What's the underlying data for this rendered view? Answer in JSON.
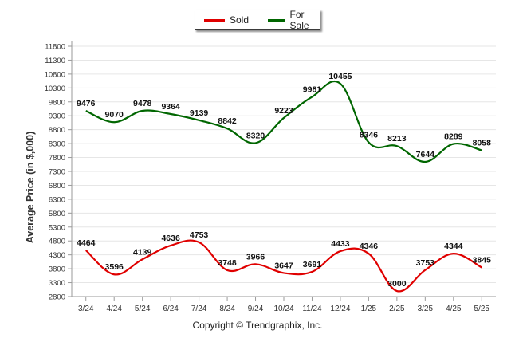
{
  "chart_data": {
    "type": "line",
    "ylabel": "Average Price (in $,000)",
    "xlabel": "",
    "categories": [
      "3/24",
      "4/24",
      "5/24",
      "6/24",
      "7/24",
      "8/24",
      "9/24",
      "10/24",
      "11/24",
      "12/24",
      "1/25",
      "2/25",
      "3/25",
      "4/25",
      "5/25"
    ],
    "y_ticks": [
      2800,
      3300,
      3800,
      4300,
      4800,
      5300,
      5800,
      6300,
      6800,
      7300,
      7800,
      8300,
      8800,
      9300,
      9800,
      10300,
      10800,
      11300,
      11800
    ],
    "ylim": [
      2800,
      11800
    ],
    "grid": true,
    "legend": "top-center",
    "series": [
      {
        "name": "Sold",
        "color": "#e00000",
        "values": [
          4464,
          3596,
          4139,
          4636,
          4753,
          3748,
          3966,
          3647,
          3691,
          4433,
          4346,
          3000,
          3753,
          4344,
          3845
        ]
      },
      {
        "name": "For Sale",
        "color": "#006600",
        "values": [
          9476,
          9070,
          9478,
          9364,
          9139,
          8842,
          8320,
          9223,
          9981,
          10455,
          8346,
          8213,
          7644,
          8289,
          8058
        ]
      }
    ]
  },
  "legend": {
    "sold_label": "Sold",
    "forsale_label": "For Sale",
    "sold_color": "#e00000",
    "forsale_color": "#006600"
  },
  "footer": "Copyright © Trendgraphix, Inc."
}
